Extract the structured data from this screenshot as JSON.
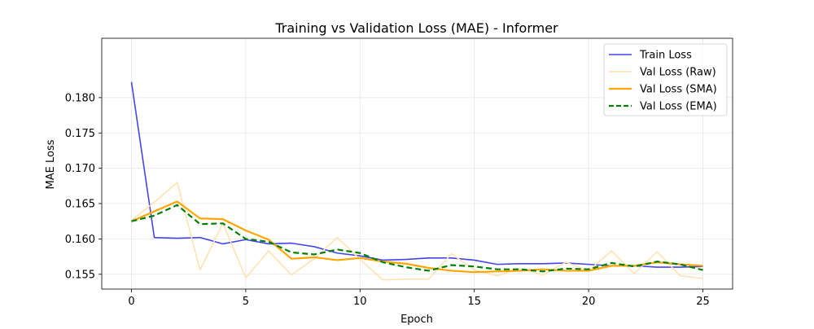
{
  "chart_data": {
    "type": "line",
    "title": "Training vs Validation Loss (MAE) - Informer",
    "xlabel": "Epoch",
    "ylabel": "MAE Loss",
    "xlim": [
      -1.3,
      26.3
    ],
    "ylim": [
      0.1529,
      0.1884
    ],
    "xticks": [
      0,
      5,
      10,
      15,
      20,
      25
    ],
    "xtick_labels": [
      "0",
      "5",
      "10",
      "15",
      "20",
      "25"
    ],
    "yticks": [
      0.155,
      0.16,
      0.165,
      0.17,
      0.175,
      0.18
    ],
    "ytick_labels": [
      "0.155",
      "0.160",
      "0.165",
      "0.170",
      "0.175",
      "0.180"
    ],
    "grid": true,
    "legend_position": "top-right",
    "x": [
      0,
      1,
      2,
      3,
      4,
      5,
      6,
      7,
      8,
      9,
      10,
      11,
      12,
      13,
      14,
      15,
      16,
      17,
      18,
      19,
      20,
      21,
      22,
      23,
      24,
      25
    ],
    "series": [
      {
        "name": "Train Loss",
        "color": "#4444ee",
        "style": "solid",
        "values": [
          0.1822,
          0.1602,
          0.1601,
          0.1602,
          0.1593,
          0.1599,
          0.1593,
          0.1594,
          0.1589,
          0.158,
          0.1576,
          0.157,
          0.1571,
          0.1573,
          0.1573,
          0.157,
          0.1564,
          0.1565,
          0.1565,
          0.1566,
          0.1564,
          0.1562,
          0.1562,
          0.156,
          0.156,
          0.1561
        ]
      },
      {
        "name": "Val Loss (Raw)",
        "color": "#ffe2b2",
        "style": "solid",
        "values": [
          0.1626,
          0.1652,
          0.168,
          0.1556,
          0.1622,
          0.1545,
          0.1583,
          0.1549,
          0.1572,
          0.1602,
          0.1571,
          0.1542,
          0.1543,
          0.1543,
          0.1579,
          0.1556,
          0.1548,
          0.1558,
          0.1549,
          0.1567,
          0.1555,
          0.1583,
          0.1551,
          0.1582,
          0.1548,
          0.1544
        ]
      },
      {
        "name": "Val Loss (SMA)",
        "color": "#ffa500",
        "style": "solid",
        "values": [
          0.1625,
          0.1639,
          0.1653,
          0.1629,
          0.1628,
          0.1612,
          0.1599,
          0.1572,
          0.1574,
          0.157,
          0.1573,
          0.1568,
          0.1565,
          0.1559,
          0.1555,
          0.1553,
          0.1554,
          0.1555,
          0.1557,
          0.1555,
          0.1555,
          0.1562,
          0.1562,
          0.1567,
          0.1564,
          0.1562
        ]
      },
      {
        "name": "Val Loss (EMA)",
        "color": "#008000",
        "style": "dashed",
        "values": [
          0.1625,
          0.1633,
          0.1648,
          0.1621,
          0.1622,
          0.16,
          0.1596,
          0.1581,
          0.1578,
          0.1585,
          0.158,
          0.1567,
          0.156,
          0.1555,
          0.1563,
          0.1561,
          0.1557,
          0.1557,
          0.1554,
          0.1558,
          0.1557,
          0.1566,
          0.1561,
          0.1568,
          0.1564,
          0.1556
        ]
      }
    ]
  }
}
